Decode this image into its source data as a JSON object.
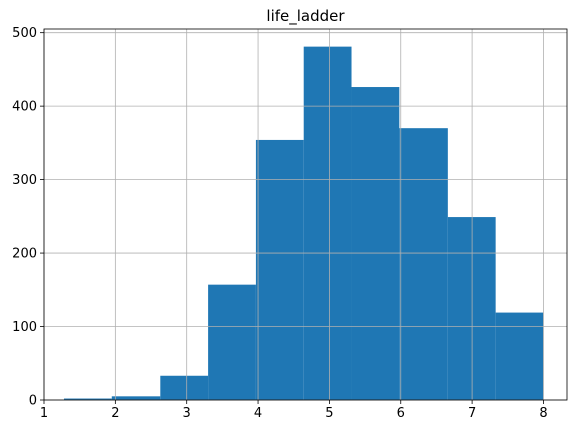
{
  "chart_data": {
    "type": "histogram",
    "title": "life_ladder",
    "xlabel": "",
    "ylabel": "",
    "bins": [
      {
        "start": 1.28,
        "end": 1.95,
        "count": 2
      },
      {
        "start": 1.95,
        "end": 2.63,
        "count": 5
      },
      {
        "start": 2.63,
        "end": 3.3,
        "count": 33
      },
      {
        "start": 3.3,
        "end": 3.97,
        "count": 157
      },
      {
        "start": 3.97,
        "end": 4.64,
        "count": 354
      },
      {
        "start": 4.64,
        "end": 5.31,
        "count": 481
      },
      {
        "start": 5.31,
        "end": 5.98,
        "count": 426
      },
      {
        "start": 5.98,
        "end": 6.66,
        "count": 370
      },
      {
        "start": 6.66,
        "end": 7.33,
        "count": 249
      },
      {
        "start": 7.33,
        "end": 8.0,
        "count": 119
      }
    ],
    "xlim": [
      1.0,
      8.33
    ],
    "ylim": [
      0,
      505
    ],
    "xticks": [
      1,
      2,
      3,
      4,
      5,
      6,
      7,
      8
    ],
    "yticks": [
      0,
      100,
      200,
      300,
      400,
      500
    ],
    "grid": true,
    "bar_color": "#1f77b4"
  }
}
